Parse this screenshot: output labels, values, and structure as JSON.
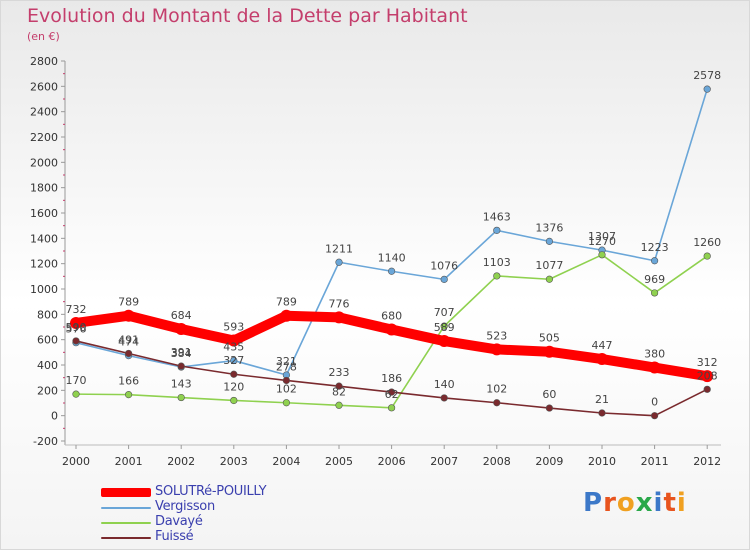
{
  "title": "Evolution du Montant de la Dette par Habitant",
  "subtitle": "(en €)",
  "logo_text": "Proxiti",
  "logo_colors": [
    "#3c78c8",
    "#e8541e",
    "#f0a020",
    "#2aa84a",
    "#3c78c8",
    "#e8541e",
    "#f0a020"
  ],
  "chart_data": {
    "type": "line",
    "title": "Evolution du Montant de la Dette par Habitant",
    "subtitle": "(en €)",
    "xlabel": "",
    "ylabel": "",
    "categories": [
      "2000",
      "2001",
      "2002",
      "2003",
      "2004",
      "2005",
      "2006",
      "2007",
      "2008",
      "2009",
      "2010",
      "2011",
      "2012"
    ],
    "ylim": [
      -200,
      2800
    ],
    "yticks": [
      -200,
      0,
      200,
      400,
      600,
      800,
      1000,
      1200,
      1400,
      1600,
      1800,
      2000,
      2200,
      2400,
      2600,
      2800
    ],
    "grid": false,
    "legend": "bottom-left",
    "series": [
      {
        "name": "SOLUTRé-POUILLY",
        "color": "#ff0000",
        "values": [
          732,
          789,
          684,
          593,
          789,
          776,
          680,
          589,
          523,
          505,
          447,
          380,
          312
        ]
      },
      {
        "name": "Vergisson",
        "color": "#6aa6d8",
        "values": [
          576,
          474,
          384,
          435,
          321,
          1211,
          1140,
          1076,
          1463,
          1376,
          1307,
          1223,
          2578
        ]
      },
      {
        "name": "Davayé",
        "color": "#8fd14f",
        "values": [
          170,
          166,
          143,
          120,
          102,
          82,
          62,
          707,
          1103,
          1077,
          1270,
          969,
          1260
        ]
      },
      {
        "name": "Fuissé",
        "color": "#7a2a2e",
        "values": [
          590,
          491,
          391,
          327,
          278,
          233,
          186,
          140,
          102,
          60,
          21,
          0,
          208
        ]
      }
    ]
  }
}
